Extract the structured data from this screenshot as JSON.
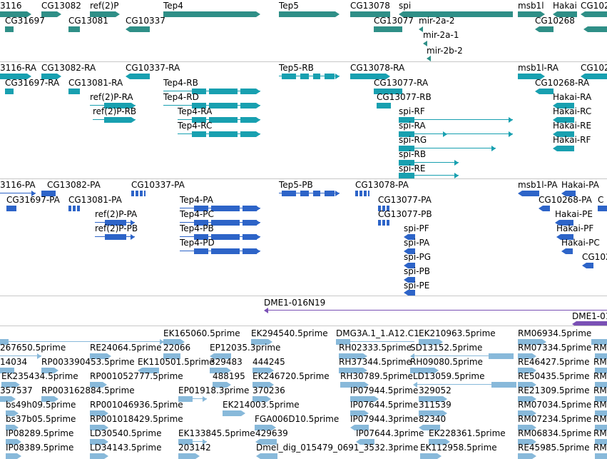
{
  "colors": {
    "gene": "#2f8f87",
    "transcript": "#18a0b0",
    "protein": "#2d64c8",
    "clone": "#7a50b5",
    "est": "#88b9da",
    "divider": "#c8c8c8"
  },
  "gene_track": {
    "labels": {
      "g0": "3116",
      "g1": "CG13082",
      "g2": "ref(2)P",
      "g3": "Tep4",
      "g4": "Tep5",
      "g5": "CG13078",
      "g6": "spi",
      "g7": "msb1l",
      "g8": "Hakai",
      "g9": "CG102",
      "g10": "CG31697",
      "g11": "CG13081",
      "g12": "CG10337",
      "g13": "CG13077",
      "g14": "mir-2a-2",
      "g15": "CG10268",
      "g16": "mir-2a-1",
      "g17": "mir-2b-2"
    }
  },
  "transcript_track": {
    "labels": {
      "t0": "3116-RA",
      "t1": "CG13082-RA",
      "t2": "CG10337-RA",
      "t3": "Tep5-RB",
      "t4": "CG13078-RA",
      "t5": "msb1l-RA",
      "t6": "CG102",
      "t7": "CG31697-RA",
      "t8": "CG13081-RA",
      "t9": "Tep4-RB",
      "t10": "CG13077-RA",
      "t11": "CG10268-RA",
      "t12": "ref(2)P-RA",
      "t13": "Tep4-RD",
      "t14": "CG13077-RB",
      "t15": "Hakai-RA",
      "t16": "ref(2)P-RB",
      "t17": "Tep4-RA",
      "t18": "spi-RF",
      "t19": "Hakai-RC",
      "t20": "Tep4-RC",
      "t21": "spi-RA",
      "t22": "Hakai-RE",
      "t23": "spi-RG",
      "t24": "Hakai-RF",
      "t25": "spi-RB",
      "t26": "spi-RE"
    }
  },
  "protein_track": {
    "labels": {
      "p0": "3116-PA",
      "p1": "CG13082-PA",
      "p2": "CG10337-PA",
      "p3": "Tep5-PB",
      "p4": "CG13078-PA",
      "p5": "msb1l-PA",
      "p6": "Hakai-PA",
      "p7": "C",
      "p8": "CG31697-PA",
      "p9": "CG13081-PA",
      "p10": "Tep4-PA",
      "p11": "CG13077-PA",
      "p12": "CG10268-PA",
      "p13": "ref(2)P-PA",
      "p14": "Tep4-PC",
      "p15": "CG13077-PB",
      "p16": "Hakai-PE",
      "p17": "ref(2)P-PB",
      "p18": "Tep4-PB",
      "p19": "spi-PF",
      "p20": "Hakai-PF",
      "p21": "Tep4-PD",
      "p22": "spi-PA",
      "p23": "Hakai-PC",
      "p24": "spi-PG",
      "p25": "CG102",
      "p26": "spi-PB",
      "p27": "spi-PE"
    }
  },
  "clone_track": {
    "labels": {
      "c0": "DME1-016N19",
      "c1": "DME1-01"
    }
  },
  "est_track": {
    "labels": {
      "e0": "EK165060.5prime",
      "e1": "EK294540.5prime",
      "e2": "DMG3A.1_1.A12.C1",
      "e3": "EK210963.5prime",
      "e4": "RM06934.5prime",
      "e5": "267650.5prime",
      "e6": "RE24064.5prime",
      "e7": "22066",
      "e8": "EP12035.3prime",
      "e9": "RH02333.5prime",
      "e10": "SD13152.5prime",
      "e11": "RM07334.5prime",
      "e12": "14034",
      "e13": "RP003390453.5prime",
      "e14": "EK110501.5prime",
      "e15": "329483",
      "e16": "444245",
      "e17": "RH37344.5prime",
      "e18": "RH09080.5prime",
      "e19": "RE46427.5prime",
      "e20": "EK235434.5prime",
      "e21": "RP001052777.5prime",
      "e22": "488195",
      "e23": "EK246720.5prime",
      "e24": "RH30789.5prime",
      "e25": "LD13059.5prime",
      "e26": "RE50435.5prime",
      "e27": "357537",
      "e28": "RP003162884.5prime",
      "e29": "EP01918.3prime",
      "e30": "370236",
      "e31": "IP07944.5prime",
      "e32": "329052",
      "e33": "RE21309.5prime",
      "e34": "bs49h09.5prime",
      "e35": "RP001046936.5prime",
      "e36": "EK214003.5prime",
      "e37": "IP07644.5prime",
      "e38": "311539",
      "e39": "RM07034.5prime",
      "e40": "bs37b05.5prime",
      "e41": "RP001018429.5prime",
      "e42": "FGA006D10.5prime",
      "e43": "IP07944.3prime",
      "e44": "82340",
      "e45": "RM07234.5prime",
      "e46": "IP08289.5prime",
      "e47": "LD30540.5prime",
      "e48": "EK133845.5prime",
      "e49": "429639",
      "e50": "IP07644.3prime",
      "e51": "EK228361.5prime",
      "e52": "RM06834.5prime",
      "e53": "IP08389.5prime",
      "e54": "LD34143.5prime",
      "e55": "203142",
      "e56": "Dmel_dig_015479_0691_3532.3prime",
      "e57": "EK112958.5prime",
      "e58": "RE45985.5prime",
      "e59": "RM",
      "e60": "RM",
      "e61": "RM",
      "e62": "RM",
      "e63": "RM",
      "e64": "RM",
      "e65": "RM",
      "e66": "RM",
      "e67": "RM"
    }
  }
}
